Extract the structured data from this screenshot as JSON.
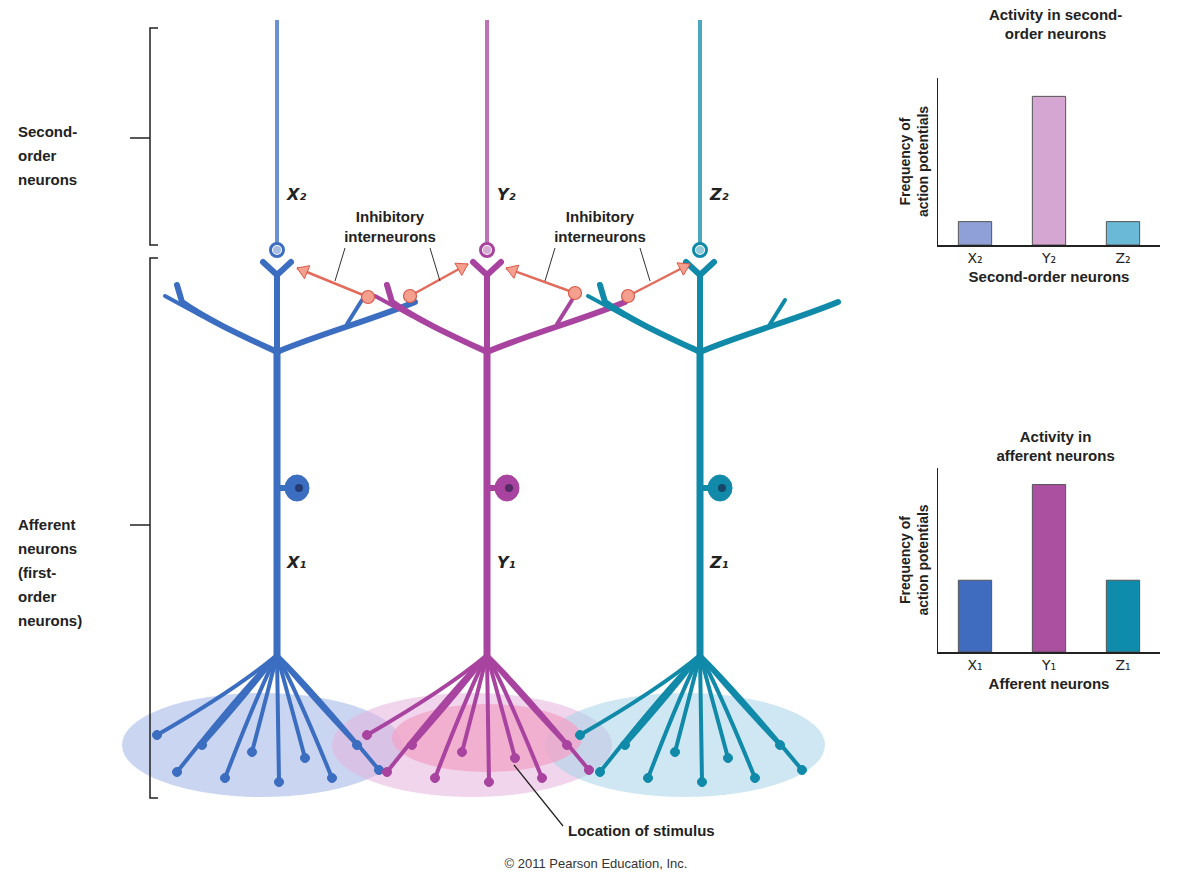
{
  "diagram": {
    "brackets": [
      {
        "label_lines": [
          "Second-",
          "order",
          "neurons"
        ]
      },
      {
        "label_lines": [
          "Afferent",
          "neurons",
          "(first-",
          "order",
          "neurons)"
        ]
      }
    ],
    "neurons": [
      {
        "second_order": "X₂",
        "afferent": "X₁",
        "color": "#3b6dc0",
        "field_color": "#9fb2e6"
      },
      {
        "second_order": "Y₂",
        "afferent": "Y₁",
        "color": "#a8449f",
        "field_color": "#e3b3dd"
      },
      {
        "second_order": "Z₂",
        "afferent": "Z₁",
        "color": "#108aa8",
        "field_color": "#a6d3ea"
      }
    ],
    "interneuron_labels": [
      [
        "Inhibitory",
        "interneurons"
      ],
      [
        "Inhibitory",
        "interneurons"
      ]
    ],
    "stimulus_label": "Location of stimulus",
    "copyright": "© 2011 Pearson Education, Inc."
  },
  "chart_data": [
    {
      "type": "bar",
      "title": [
        "Activity in second-",
        "order neurons"
      ],
      "x_label": "Second-order neurons",
      "y_label": [
        "Frequency of",
        "action potentials"
      ],
      "categories": [
        "X₂",
        "Y₂",
        "Z₂"
      ],
      "values": [
        1.4,
        8.9,
        1.4
      ],
      "colors": [
        "#8fa0d8",
        "#d4a6d1",
        "#6ab9d6"
      ],
      "ylim": [
        0,
        10
      ],
      "tick_labels": "x",
      "grid": false
    },
    {
      "type": "bar",
      "title": [
        "Activity in",
        "afferent neurons"
      ],
      "x_label": "Afferent neurons",
      "y_label": [
        "Frequency of",
        "action potentials"
      ],
      "categories": [
        "X₁",
        "Y₁",
        "Z₁"
      ],
      "values": [
        3.9,
        9.1,
        3.9
      ],
      "colors": [
        "#3f6cbf",
        "#ab4fa0",
        "#0f8cab"
      ],
      "ylim": [
        0,
        10
      ],
      "tick_labels": "x",
      "grid": false
    }
  ]
}
